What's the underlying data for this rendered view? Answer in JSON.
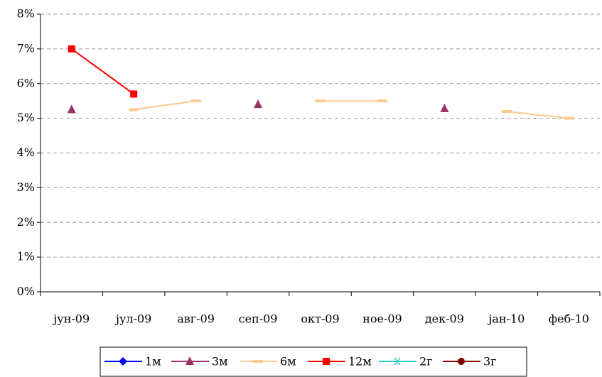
{
  "chart_data": {
    "type": "line",
    "categories": [
      "јун-09",
      "јул-09",
      "авг-09",
      "сеп-09",
      "окт-09",
      "ное-09",
      "дек-09",
      "јан-10",
      "феб-10"
    ],
    "series": [
      {
        "name": "1м",
        "color": "#0000ff",
        "marker": "diamond",
        "values": [
          null,
          null,
          null,
          null,
          null,
          null,
          null,
          null,
          null
        ]
      },
      {
        "name": "3м",
        "color": "#993366",
        "marker": "triangle",
        "values": [
          5.25,
          null,
          null,
          5.4,
          null,
          null,
          5.28,
          null,
          null
        ]
      },
      {
        "name": "6м",
        "color": "#fcc98f",
        "marker": "dash",
        "values": [
          null,
          5.25,
          5.5,
          null,
          5.5,
          5.5,
          null,
          5.2,
          5.0
        ]
      },
      {
        "name": "12м",
        "color": "#ff0000",
        "marker": "square",
        "values": [
          7.0,
          5.7,
          null,
          null,
          null,
          null,
          null,
          null,
          null
        ]
      },
      {
        "name": "2г",
        "color": "#33cccc",
        "marker": "asterisk",
        "values": [
          null,
          null,
          null,
          null,
          null,
          null,
          null,
          null,
          null
        ]
      },
      {
        "name": "3г",
        "color": "#800000",
        "marker": "circle",
        "values": [
          null,
          null,
          null,
          null,
          null,
          null,
          null,
          null,
          null
        ]
      }
    ],
    "ylim": [
      0,
      8
    ],
    "yticks": [
      {
        "value": 0,
        "label": "0%"
      },
      {
        "value": 1,
        "label": "1%"
      },
      {
        "value": 2,
        "label": "2%"
      },
      {
        "value": 3,
        "label": "3%"
      },
      {
        "value": 4,
        "label": "4%"
      },
      {
        "value": 5,
        "label": "5%"
      },
      {
        "value": 6,
        "label": "6%"
      },
      {
        "value": 7,
        "label": "7%"
      },
      {
        "value": 8,
        "label": "8%"
      }
    ],
    "grid": true
  }
}
